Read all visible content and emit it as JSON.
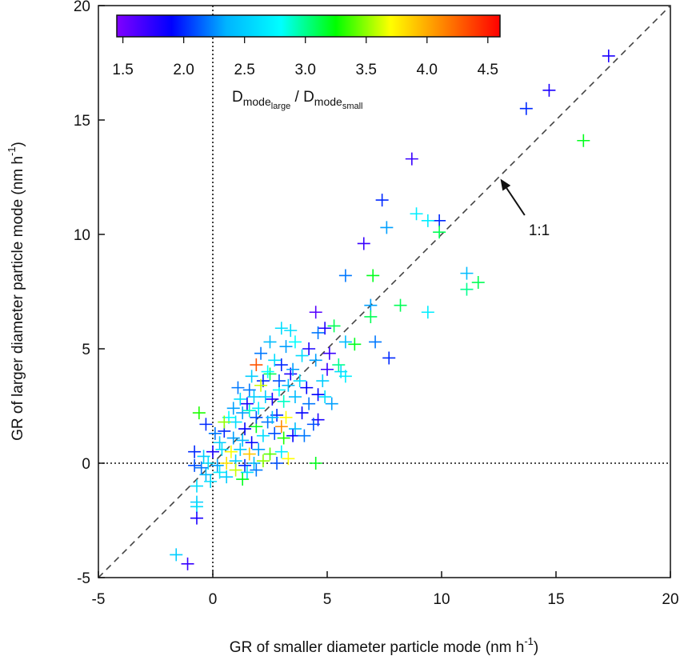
{
  "chart_data": {
    "type": "scatter",
    "title": "",
    "xlabel": "GR of smaller diameter particle mode (nm h",
    "xlabel_sup": "-1",
    "xlabel_close": ")",
    "ylabel": "GR of larger diameter particle mode (nm h",
    "ylabel_sup": "-1",
    "ylabel_close": ")",
    "xlim": [
      -5,
      20
    ],
    "ylim": [
      -5,
      20
    ],
    "x_ticks": [
      "-5",
      "0",
      "5",
      "10",
      "15",
      "20"
    ],
    "y_ticks": [
      "-5",
      "0",
      "5",
      "10",
      "15",
      "20"
    ],
    "grid": false,
    "marker": "plus",
    "reference_lines": [
      {
        "type": "diagonal_1to1",
        "style": "dashed"
      },
      {
        "type": "vertical_x0",
        "style": "dotted"
      },
      {
        "type": "horizontal_y0",
        "style": "dotted"
      }
    ],
    "annotation": {
      "text": "1:1",
      "arrow_to": [
        12.5,
        12.5
      ],
      "text_at": [
        14.4,
        10.0
      ]
    },
    "colorbar": {
      "label_main": "D",
      "label_sub1": "mode",
      "label_sub1_sub": "large",
      "label_sep": " / D",
      "label_sub2": "mode",
      "label_sub2_sub": "small",
      "ticks": [
        "1.5",
        "2.0",
        "2.5",
        "3.0",
        "3.5",
        "4.0",
        "4.5"
      ],
      "range": [
        1.45,
        4.6
      ],
      "colors": [
        "#8000ff",
        "#0000ff",
        "#00b4ff",
        "#00ffff",
        "#00ff00",
        "#ffff00",
        "#ff8000",
        "#ff0000"
      ]
    },
    "points": [
      [
        17.3,
        17.8,
        1.8
      ],
      [
        14.7,
        16.3,
        1.8
      ],
      [
        13.7,
        15.5,
        2.0
      ],
      [
        16.2,
        14.1,
        3.2
      ],
      [
        8.7,
        13.3,
        1.7
      ],
      [
        7.4,
        11.5,
        2.0
      ],
      [
        9.9,
        10.6,
        2.0
      ],
      [
        8.9,
        10.9,
        2.7
      ],
      [
        9.4,
        10.6,
        2.7
      ],
      [
        7.6,
        10.3,
        2.3
      ],
      [
        9.9,
        10.1,
        3.1
      ],
      [
        6.6,
        9.6,
        1.7
      ],
      [
        5.8,
        8.2,
        2.2
      ],
      [
        7.0,
        8.2,
        3.2
      ],
      [
        11.1,
        8.3,
        2.4
      ],
      [
        11.6,
        7.9,
        3.1
      ],
      [
        11.1,
        7.6,
        3.0
      ],
      [
        8.2,
        6.9,
        3.1
      ],
      [
        6.9,
        6.9,
        2.3
      ],
      [
        9.4,
        6.6,
        2.7
      ],
      [
        4.5,
        6.6,
        1.6
      ],
      [
        6.9,
        6.4,
        3.1
      ],
      [
        4.9,
        5.9,
        1.8
      ],
      [
        5.3,
        6.0,
        3.1
      ],
      [
        3.0,
        5.9,
        2.6
      ],
      [
        4.6,
        5.7,
        2.2
      ],
      [
        5.8,
        5.3,
        2.4
      ],
      [
        6.2,
        5.2,
        3.2
      ],
      [
        7.1,
        5.3,
        2.2
      ],
      [
        7.7,
        4.6,
        2.0
      ],
      [
        3.4,
        5.8,
        2.6
      ],
      [
        3.6,
        5.3,
        2.8
      ],
      [
        3.2,
        5.1,
        2.3
      ],
      [
        4.2,
        5.0,
        1.8
      ],
      [
        5.1,
        4.8,
        1.7
      ],
      [
        3.9,
        4.7,
        2.6
      ],
      [
        2.5,
        5.3,
        2.4
      ],
      [
        2.1,
        4.8,
        2.2
      ],
      [
        1.9,
        4.3,
        4.3
      ],
      [
        2.7,
        4.5,
        2.6
      ],
      [
        3.0,
        4.3,
        2.0
      ],
      [
        4.5,
        4.5,
        2.3
      ],
      [
        5.6,
        4.0,
        2.6
      ],
      [
        5.8,
        3.8,
        2.7
      ],
      [
        5.0,
        4.1,
        1.7
      ],
      [
        3.4,
        3.9,
        1.8
      ],
      [
        2.5,
        3.9,
        3.1
      ],
      [
        2.2,
        3.6,
        2.0
      ],
      [
        1.6,
        3.2,
        2.2
      ],
      [
        3.3,
        3.4,
        2.4
      ],
      [
        4.6,
        3.0,
        1.9
      ],
      [
        4.9,
        2.9,
        2.6
      ],
      [
        4.2,
        2.6,
        2.2
      ],
      [
        3.6,
        2.9,
        2.4
      ],
      [
        2.9,
        3.2,
        2.8
      ],
      [
        2.6,
        2.8,
        1.8
      ],
      [
        2.1,
        3.4,
        3.6
      ],
      [
        1.8,
        2.9,
        2.5
      ],
      [
        1.5,
        2.6,
        1.8
      ],
      [
        1.1,
        3.3,
        2.2
      ],
      [
        1.3,
        2.2,
        2.3
      ],
      [
        2.0,
        2.4,
        2.7
      ],
      [
        2.8,
        2.1,
        2.0
      ],
      [
        3.2,
        2.0,
        3.7
      ],
      [
        3.9,
        2.2,
        1.9
      ],
      [
        4.6,
        1.9,
        1.8
      ],
      [
        4.4,
        1.7,
        2.1
      ],
      [
        3.6,
        1.5,
        2.4
      ],
      [
        3.0,
        1.6,
        4.1
      ],
      [
        2.4,
        1.8,
        2.2
      ],
      [
        1.9,
        1.6,
        3.2
      ],
      [
        1.4,
        1.5,
        1.9
      ],
      [
        1.0,
        1.8,
        2.6
      ],
      [
        0.7,
        2.0,
        2.8
      ],
      [
        0.5,
        1.4,
        2.0
      ],
      [
        0.9,
        1.1,
        2.3
      ],
      [
        1.3,
        1.0,
        2.4
      ],
      [
        1.7,
        0.9,
        1.9
      ],
      [
        2.2,
        1.2,
        2.6
      ],
      [
        2.7,
        1.3,
        2.1
      ],
      [
        3.1,
        1.1,
        3.3
      ],
      [
        3.5,
        1.2,
        1.9
      ],
      [
        4.0,
        1.2,
        2.2
      ],
      [
        0.3,
        0.9,
        2.5
      ],
      [
        0.1,
        1.3,
        2.2
      ],
      [
        -0.3,
        1.7,
        2.0
      ],
      [
        -0.6,
        2.2,
        3.3
      ],
      [
        -0.8,
        0.5,
        2.0
      ],
      [
        -0.4,
        0.3,
        2.5
      ],
      [
        0.0,
        0.5,
        1.8
      ],
      [
        0.4,
        0.6,
        2.6
      ],
      [
        0.8,
        0.5,
        3.7
      ],
      [
        1.2,
        0.6,
        2.5
      ],
      [
        1.6,
        0.4,
        3.9
      ],
      [
        2.0,
        0.6,
        2.3
      ],
      [
        2.5,
        0.4,
        3.4
      ],
      [
        3.0,
        0.5,
        2.7
      ],
      [
        3.3,
        0.2,
        3.7
      ],
      [
        2.8,
        0.0,
        2.1
      ],
      [
        2.2,
        0.1,
        3.5
      ],
      [
        1.8,
        0.0,
        2.4
      ],
      [
        1.4,
        -0.1,
        2.0
      ],
      [
        1.0,
        0.1,
        2.5
      ],
      [
        0.6,
        0.0,
        3.8
      ],
      [
        0.2,
        -0.1,
        2.3
      ],
      [
        -0.2,
        0.0,
        2.6
      ],
      [
        -0.5,
        -0.2,
        2.2
      ],
      [
        -0.8,
        -0.1,
        2.1
      ],
      [
        0.3,
        -0.4,
        2.7
      ],
      [
        0.6,
        -0.6,
        2.5
      ],
      [
        1.0,
        -0.3,
        3.6
      ],
      [
        1.5,
        -0.4,
        2.6
      ],
      [
        1.9,
        -0.3,
        2.2
      ],
      [
        -0.3,
        -0.5,
        2.4
      ],
      [
        -0.1,
        -0.8,
        2.6
      ],
      [
        1.3,
        -0.7,
        3.2
      ],
      [
        4.5,
        0.0,
        3.2
      ],
      [
        -0.7,
        -1.0,
        2.6
      ],
      [
        -0.7,
        -1.7,
        2.5
      ],
      [
        -0.7,
        -1.9,
        2.6
      ],
      [
        -0.7,
        -2.4,
        1.8
      ],
      [
        -1.6,
        -4.0,
        2.5
      ],
      [
        -1.1,
        -4.4,
        1.7
      ],
      [
        0.5,
        1.8,
        3.5
      ],
      [
        0.9,
        2.4,
        2.3
      ],
      [
        1.2,
        2.8,
        2.6
      ],
      [
        1.6,
        2.3,
        2.9
      ],
      [
        2.3,
        2.9,
        2.5
      ],
      [
        2.9,
        3.6,
        2.1
      ],
      [
        3.5,
        4.1,
        2.3
      ],
      [
        2.4,
        4.0,
        2.8
      ],
      [
        1.7,
        3.8,
        2.5
      ],
      [
        3.8,
        3.6,
        2.6
      ],
      [
        4.1,
        3.3,
        1.9
      ],
      [
        4.8,
        3.6,
        2.5
      ],
      [
        5.2,
        2.6,
        2.3
      ],
      [
        5.5,
        4.3,
        3.0
      ],
      [
        3.1,
        2.7,
        2.9
      ],
      [
        2.6,
        2.0,
        2.4
      ],
      [
        1.9,
        2.0,
        2.1
      ]
    ]
  }
}
